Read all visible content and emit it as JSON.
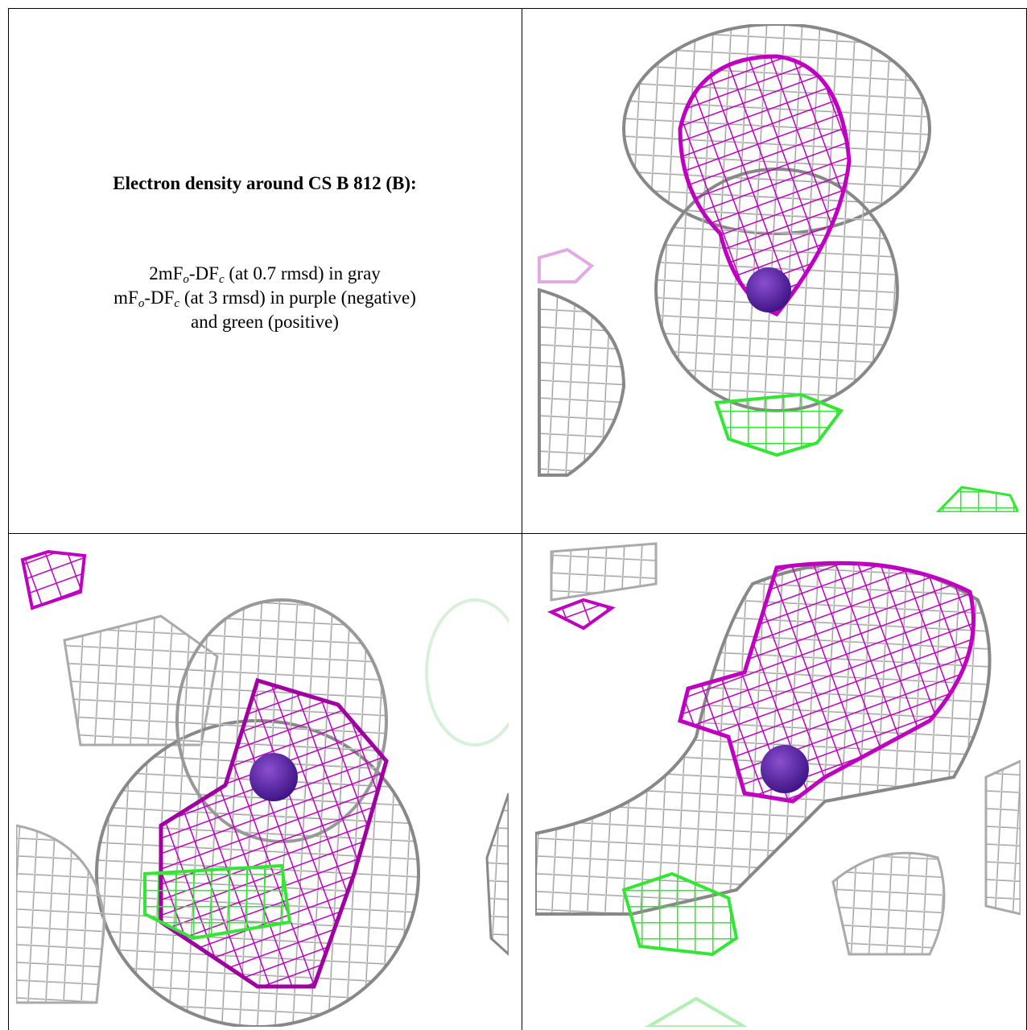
{
  "caption": {
    "title": "Electron density around CS B 812 (B):",
    "lines": [
      [
        "2mF",
        "o",
        "-DF",
        "c",
        " (at 0.7 rmsd) in gray"
      ],
      [
        "mF",
        "o",
        "-DF",
        "c",
        " (at 3 rmsd) in purple (negative)"
      ],
      [
        "and green (positive)"
      ]
    ]
  }
}
